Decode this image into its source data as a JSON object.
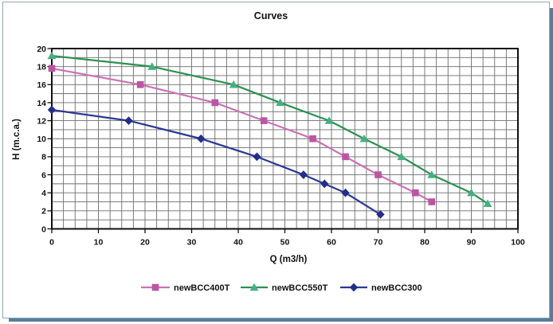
{
  "window": {
    "title": "Curves"
  },
  "chart_data": {
    "type": "line",
    "title": "Curves",
    "xlabel": "Q (m3/h)",
    "ylabel": "H (m.c.a.)",
    "xlim": [
      0,
      100
    ],
    "ylim": [
      0,
      20
    ],
    "x_ticks": [
      0,
      10,
      20,
      30,
      40,
      50,
      60,
      70,
      80,
      90,
      100
    ],
    "y_ticks": [
      0,
      2,
      4,
      6,
      8,
      10,
      12,
      14,
      16,
      18,
      20
    ],
    "x_minor_grid": 2.5,
    "y_minor_grid": 1,
    "grid": "on",
    "grid_color": "#6d6d6d",
    "axis_color": "#101010",
    "legend_position": "bottom",
    "series": [
      {
        "name": "newBCC400T",
        "marker": "square",
        "line_color": "#cb72b6",
        "marker_color": "#bc55a4",
        "points": [
          [
            0,
            17.8
          ],
          [
            19,
            16
          ],
          [
            35,
            14
          ],
          [
            45.5,
            12
          ],
          [
            56,
            10
          ],
          [
            63,
            8
          ],
          [
            70,
            6
          ],
          [
            78,
            4
          ],
          [
            81.5,
            3
          ]
        ]
      },
      {
        "name": "newBCC550T",
        "marker": "triangle",
        "line_color": "#2c9152",
        "marker_color": "#44b083",
        "points": [
          [
            0,
            19.2
          ],
          [
            21.5,
            18
          ],
          [
            39,
            16
          ],
          [
            49,
            14
          ],
          [
            59.5,
            12
          ],
          [
            67,
            10
          ],
          [
            75,
            8
          ],
          [
            81.5,
            6
          ],
          [
            90,
            4
          ],
          [
            93.5,
            2.8
          ]
        ]
      },
      {
        "name": "newBCC300",
        "marker": "diamond",
        "line_color": "#2c3795",
        "marker_color": "#232e88",
        "points": [
          [
            0,
            13.2
          ],
          [
            16.5,
            12
          ],
          [
            32,
            10
          ],
          [
            44,
            8
          ],
          [
            54,
            6
          ],
          [
            58.5,
            5
          ],
          [
            63,
            4
          ],
          [
            70.5,
            1.6
          ]
        ]
      }
    ]
  }
}
